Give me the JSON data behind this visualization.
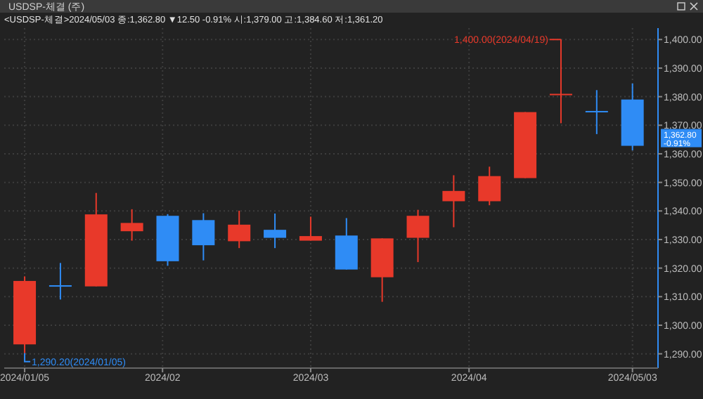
{
  "chart_data": {
    "type": "candlestick",
    "title": "USDSP-체결 (주)",
    "subtitle": "<USDSP-체결>2024/05/03 종:1,362.80 ▼12.50 -0.91% 시:1,379.00 고:1,384.60 저:1,361.20",
    "x": [
      "2024-01-05",
      "2024-01-12",
      "2024-01-19",
      "2024-01-26",
      "2024-02-02",
      "2024-02-09",
      "2024-02-16",
      "2024-02-23",
      "2024-03-01",
      "2024-03-08",
      "2024-03-15",
      "2024-03-22",
      "2024-03-29",
      "2024-04-05",
      "2024-04-12",
      "2024-04-19",
      "2024-04-26",
      "2024-05-03"
    ],
    "ohlc": [
      [
        1293.3,
        1317.1,
        1290.2,
        1315.5
      ],
      [
        1314.0,
        1321.8,
        1309.0,
        1313.5
      ],
      [
        1313.6,
        1346.3,
        1313.6,
        1338.8
      ],
      [
        1332.9,
        1340.6,
        1329.6,
        1335.8
      ],
      [
        1338.3,
        1338.9,
        1320.8,
        1322.4
      ],
      [
        1336.8,
        1339.2,
        1322.7,
        1328.0
      ],
      [
        1329.4,
        1340.1,
        1327.0,
        1335.2
      ],
      [
        1333.4,
        1339.1,
        1327.0,
        1330.6
      ],
      [
        1329.6,
        1338.0,
        1329.6,
        1331.2
      ],
      [
        1331.4,
        1337.5,
        1319.5,
        1319.5
      ],
      [
        1316.8,
        1330.4,
        1308.2,
        1330.4
      ],
      [
        1330.6,
        1340.4,
        1322.1,
        1338.3
      ],
      [
        1343.4,
        1352.5,
        1334.3,
        1347.0
      ],
      [
        1343.4,
        1355.5,
        1342.0,
        1352.2
      ],
      [
        1351.5,
        1374.6,
        1351.5,
        1374.6
      ],
      [
        1380.8,
        1400.0,
        1370.7,
        1381.0
      ],
      [
        1375.0,
        1382.3,
        1366.9,
        1374.8
      ],
      [
        1379.0,
        1384.6,
        1361.2,
        1362.8
      ]
    ],
    "colors": [
      "#e8392a",
      "#2f8cf5",
      "#e8392a",
      "#e8392a",
      "#2f8cf5",
      "#2f8cf5",
      "#e8392a",
      "#2f8cf5",
      "#e8392a",
      "#2f8cf5",
      "#e8392a",
      "#e8392a",
      "#e8392a",
      "#e8392a",
      "#e8392a",
      "#e8392a",
      "#2f8cf5",
      "#2f8cf5"
    ],
    "xlim": [
      "2024-01-01",
      "2024-05-08"
    ],
    "xticks": [
      {
        "value": "2024-01-05",
        "label": "2024/01/05"
      },
      {
        "value": "2024-02-01",
        "label": "2024/02"
      },
      {
        "value": "2024-03-01",
        "label": "2024/03"
      },
      {
        "value": "2024-04-01",
        "label": "2024/04"
      },
      {
        "value": "2024-05-03",
        "label": "2024/05/03"
      }
    ],
    "ylim": [
      1285,
      1404
    ],
    "yticks": [
      {
        "value": 1290,
        "label": "1,290.00"
      },
      {
        "value": 1300,
        "label": "1,300.00"
      },
      {
        "value": 1310,
        "label": "1,310.00"
      },
      {
        "value": 1320,
        "label": "1,320.00"
      },
      {
        "value": 1330,
        "label": "1,330.00"
      },
      {
        "value": 1340,
        "label": "1,340.00"
      },
      {
        "value": 1350,
        "label": "1,350.00"
      },
      {
        "value": 1360,
        "label": "1,360.00"
      },
      {
        "value": 1370,
        "label": "1,370.00"
      },
      {
        "value": 1380,
        "label": "1,380.00"
      },
      {
        "value": 1390,
        "label": "1,390.00"
      },
      {
        "value": 1400,
        "label": "1,400.00"
      }
    ],
    "grid": true,
    "annotations": [
      {
        "text": "1,400.00(2024/04/19)",
        "x": "2024-04-19",
        "y": 1400
      },
      {
        "text": "1,290.20(2024/01/05)",
        "x": "2024-01-05",
        "y": 1290.2
      },
      "1,362.80",
      "-0.91%"
    ]
  }
}
